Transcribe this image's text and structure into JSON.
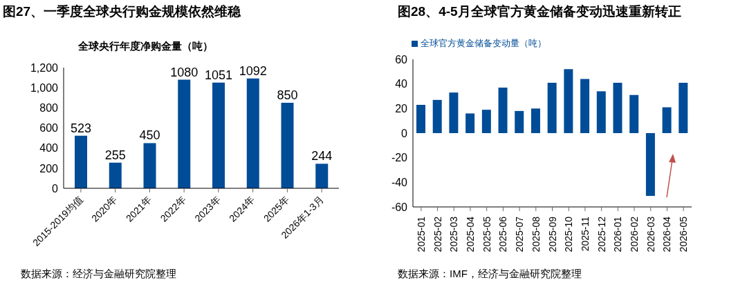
{
  "chart_data": [
    {
      "type": "bar",
      "title": "图27、一季度全球央行购金规模依然维稳",
      "subtitle": "全球央行年度净购金量（吨）",
      "categories": [
        "2015-2019均值",
        "2020年",
        "2021年",
        "2022年",
        "2023年",
        "2024年",
        "2025年",
        "2026年1-3月"
      ],
      "values": [
        523,
        255,
        450,
        1080,
        1051,
        1092,
        850,
        244
      ],
      "color": "#004c97",
      "ylim": [
        0,
        1200
      ],
      "yticks": [
        0,
        200,
        400,
        600,
        800,
        {
          "value": 1000,
          "label": "1,000"
        },
        {
          "value": 1200,
          "label": "1,200"
        }
      ],
      "data_labels": true,
      "annotations": [
        "数据来源：经济与金融研究院整理"
      ]
    },
    {
      "type": "bar",
      "title": "图28、4-5月全球官方黄金储备变动迅速重新转正",
      "categories": [
        "2025-01",
        "2025-02",
        "2025-03",
        "2025-04",
        "2025-05",
        "2025-06",
        "2025-07",
        "2025-08",
        "2025-09",
        "2025-10",
        "2025-11",
        "2025-12",
        "2026-01",
        "2026-02",
        "2026-03",
        "2026-04",
        "2026-05"
      ],
      "series": [
        {
          "name": "全球官方黄金储备变动量（吨）",
          "color": "#004c97",
          "values": [
            23,
            27,
            33,
            16,
            19,
            37,
            18,
            20,
            41,
            52,
            44,
            34,
            41,
            31,
            -51,
            21,
            41
          ]
        }
      ],
      "ylim": [
        -60,
        60
      ],
      "yticks": [
        -60,
        -40,
        -20,
        0,
        20,
        40,
        60
      ],
      "legend": "top left",
      "annotations": [
        "数据来源：IMF，经济与金融研究院整理"
      ]
    }
  ]
}
